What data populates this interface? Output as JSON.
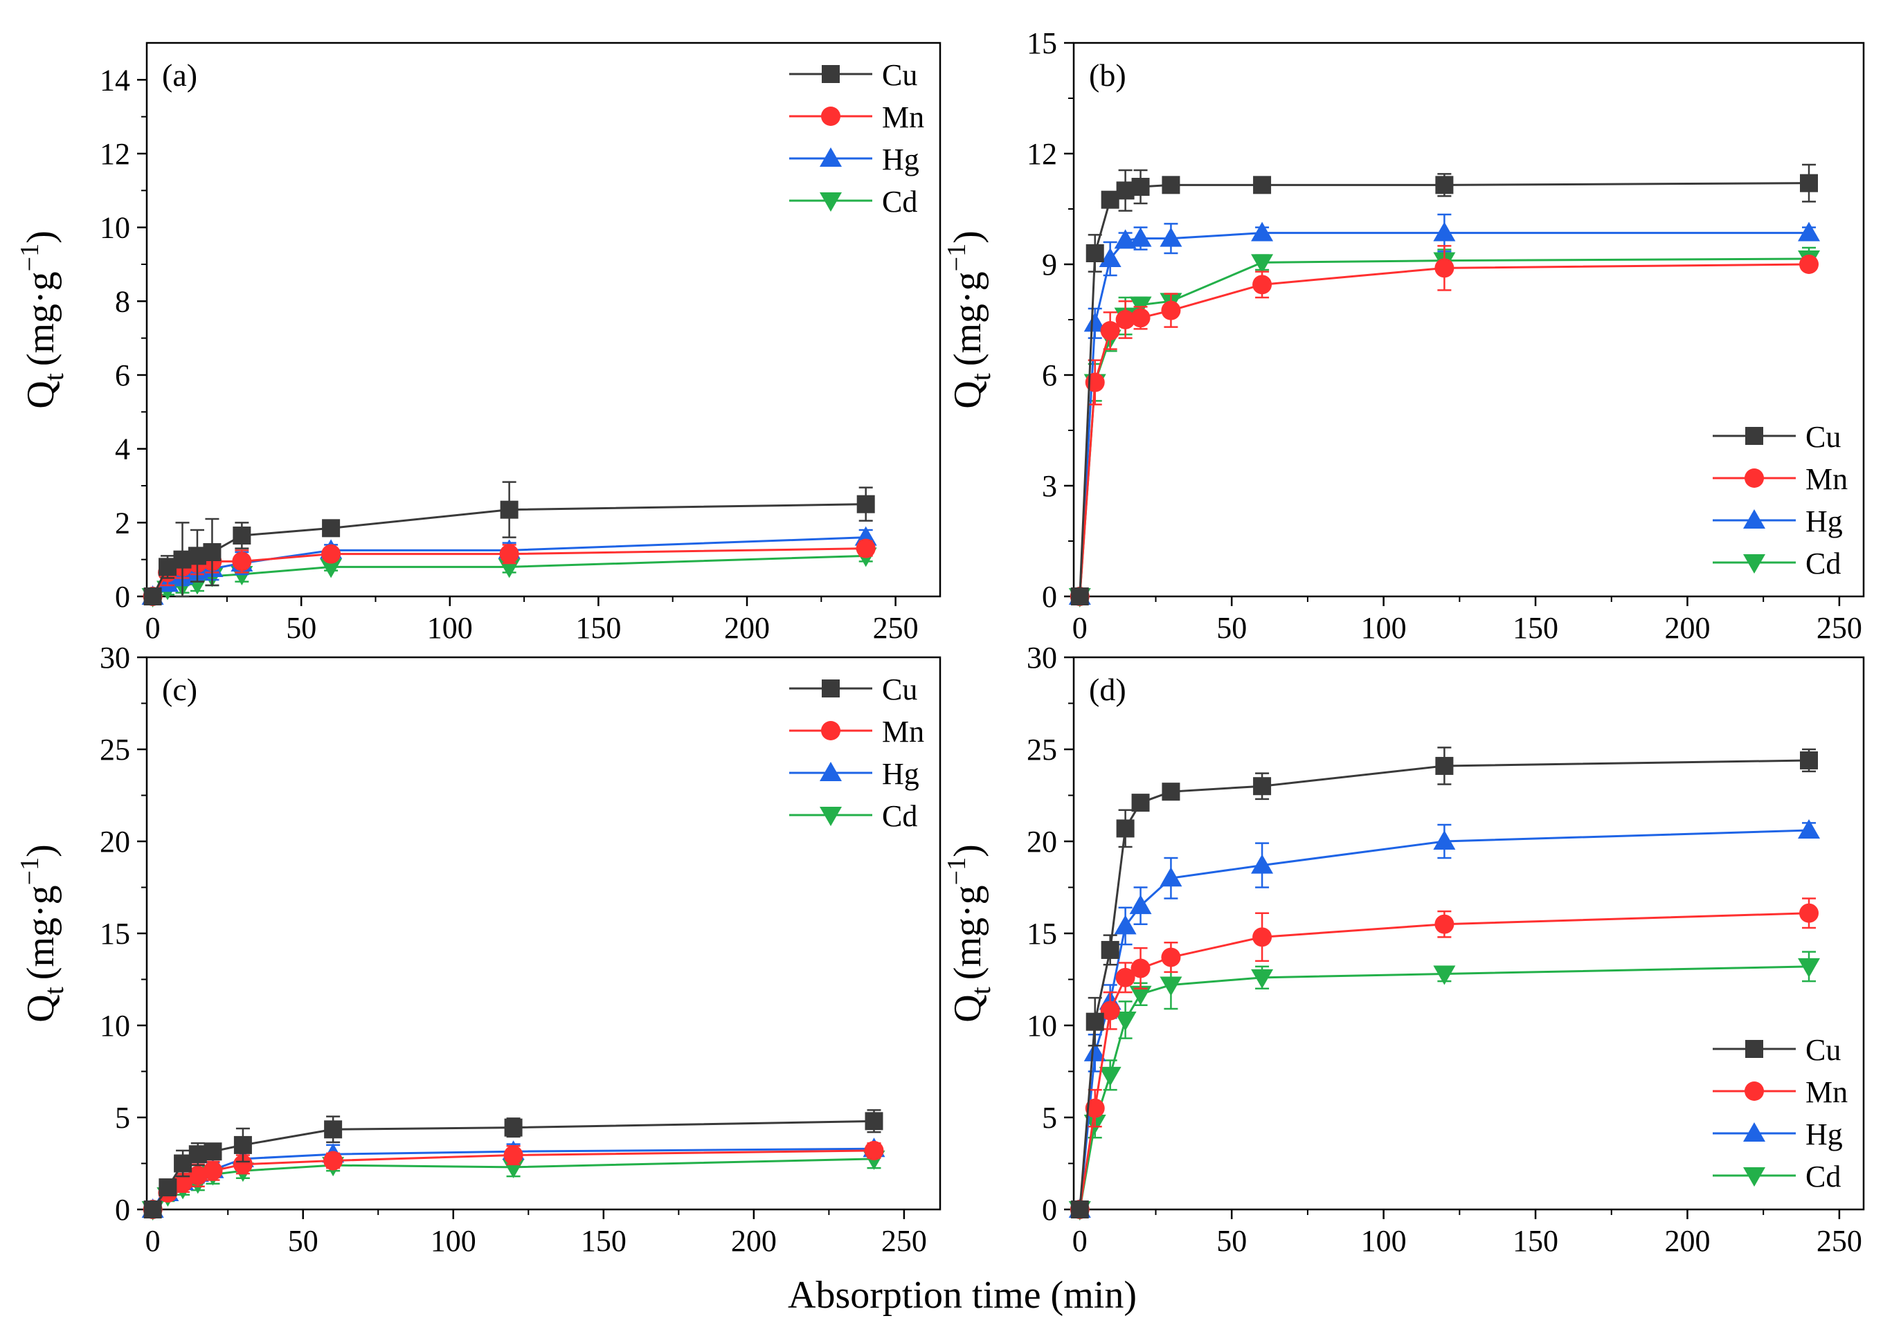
{
  "figure": {
    "xlabel": "Absorption time (min)",
    "colors": {
      "Cu": "#3a3a3a",
      "Mn": "#ff3030",
      "Hg": "#1e64e6",
      "Cd": "#23b04a"
    },
    "markers": {
      "Cu": "square",
      "Mn": "circle",
      "Hg": "triangle-up",
      "Cd": "triangle-down"
    }
  },
  "chart_data": [
    {
      "type": "line",
      "title": "(a)",
      "ylabel": "Q",
      "ylabel_sub": "t",
      "ylabel_unit": "(mg·g",
      "ylabel_sup": "−1",
      "ylabel_close": ")",
      "xlim": [
        -2,
        265
      ],
      "ylim": [
        0,
        15
      ],
      "xticks": [
        0,
        50,
        100,
        150,
        200,
        250
      ],
      "yticks": [
        0,
        2,
        4,
        6,
        8,
        10,
        12,
        14
      ],
      "x_tick_labels": [
        "0",
        "50",
        "100",
        "150",
        "200",
        "250"
      ],
      "y_tick_labels": [
        "0",
        "2",
        "4",
        "6",
        "8",
        "10",
        "12",
        "14"
      ],
      "legend_position": "top-right",
      "x": [
        0,
        5,
        10,
        15,
        20,
        30,
        60,
        120,
        240
      ],
      "series": [
        {
          "name": "Cu",
          "values": [
            0,
            0.8,
            1.0,
            1.1,
            1.2,
            1.65,
            1.85,
            2.35,
            2.5
          ],
          "errors": [
            0,
            0.3,
            1.0,
            0.7,
            0.9,
            0.35,
            0.15,
            0.75,
            0.45
          ]
        },
        {
          "name": "Mn",
          "values": [
            0,
            0.65,
            0.8,
            0.9,
            0.95,
            0.95,
            1.15,
            1.15,
            1.3
          ],
          "errors": [
            0,
            0.35,
            0.3,
            0.3,
            0.3,
            0.3,
            0.15,
            0.25,
            0.2
          ]
        },
        {
          "name": "Hg",
          "values": [
            0,
            0.35,
            0.55,
            0.7,
            0.75,
            0.9,
            1.25,
            1.25,
            1.6
          ],
          "errors": [
            0,
            0.2,
            0.25,
            0.25,
            0.3,
            0.3,
            0.15,
            0.2,
            0.2
          ]
        },
        {
          "name": "Cd",
          "values": [
            0,
            0.2,
            0.3,
            0.35,
            0.55,
            0.6,
            0.8,
            0.8,
            1.1
          ],
          "errors": [
            0,
            0.15,
            0.2,
            0.2,
            0.25,
            0.2,
            0.1,
            0.15,
            0.15
          ]
        }
      ]
    },
    {
      "type": "line",
      "title": "(b)",
      "ylabel": "Q",
      "ylabel_sub": "t",
      "ylabel_unit": "(mg·g",
      "ylabel_sup": "−1",
      "ylabel_close": ")",
      "xlim": [
        -2,
        258
      ],
      "ylim": [
        0,
        15
      ],
      "xticks": [
        0,
        50,
        100,
        150,
        200,
        250
      ],
      "yticks": [
        0,
        3,
        6,
        9,
        12,
        15
      ],
      "x_tick_labels": [
        "0",
        "50",
        "100",
        "150",
        "200",
        "250"
      ],
      "y_tick_labels": [
        "0",
        "3",
        "6",
        "9",
        "12",
        "15"
      ],
      "legend_position": "bottom-right",
      "x": [
        0,
        5,
        10,
        15,
        20,
        30,
        60,
        120,
        240
      ],
      "series": [
        {
          "name": "Cu",
          "values": [
            0,
            9.3,
            10.75,
            11.0,
            11.1,
            11.15,
            11.15,
            11.15,
            11.2
          ],
          "errors": [
            0,
            0.5,
            0.2,
            0.55,
            0.45,
            0.1,
            0.2,
            0.3,
            0.5
          ]
        },
        {
          "name": "Mn",
          "values": [
            0,
            5.8,
            7.2,
            7.5,
            7.55,
            7.75,
            8.45,
            8.9,
            9.0
          ],
          "errors": [
            0,
            0.6,
            0.5,
            0.5,
            0.3,
            0.45,
            0.35,
            0.6,
            0.1
          ]
        },
        {
          "name": "Hg",
          "values": [
            0,
            7.4,
            9.15,
            9.65,
            9.7,
            9.7,
            9.85,
            9.85,
            9.85
          ],
          "errors": [
            0,
            0.4,
            0.45,
            0.2,
            0.3,
            0.4,
            0.15,
            0.5,
            0.15
          ]
        },
        {
          "name": "Cd",
          "values": [
            0,
            5.8,
            7.0,
            7.6,
            7.9,
            8.0,
            9.05,
            9.1,
            9.15
          ],
          "errors": [
            0,
            0.5,
            0.35,
            0.5,
            0.2,
            0.2,
            0.2,
            0.3,
            0.3
          ]
        }
      ]
    },
    {
      "type": "line",
      "title": "(c)",
      "ylabel": "Q",
      "ylabel_sub": "t",
      "ylabel_unit": "(mg·g",
      "ylabel_sup": "−1",
      "ylabel_close": ")",
      "xlim": [
        -2,
        262
      ],
      "ylim": [
        0,
        30
      ],
      "xticks": [
        0,
        50,
        100,
        150,
        200,
        250
      ],
      "yticks": [
        0,
        5,
        10,
        15,
        20,
        25,
        30
      ],
      "x_tick_labels": [
        "0",
        "50",
        "100",
        "150",
        "200",
        "250"
      ],
      "y_tick_labels": [
        "0",
        "5",
        "10",
        "15",
        "20",
        "25",
        "30"
      ],
      "legend_position": "top-right",
      "x": [
        0,
        5,
        10,
        15,
        20,
        30,
        60,
        120,
        240
      ],
      "series": [
        {
          "name": "Cu",
          "values": [
            0,
            1.2,
            2.5,
            3.0,
            3.15,
            3.5,
            4.35,
            4.45,
            4.8
          ],
          "errors": [
            0,
            0.3,
            0.7,
            0.6,
            0.4,
            0.9,
            0.7,
            0.5,
            0.6
          ]
        },
        {
          "name": "Mn",
          "values": [
            0,
            0.9,
            1.45,
            1.85,
            2.1,
            2.45,
            2.65,
            2.95,
            3.2
          ],
          "errors": [
            0,
            0.3,
            0.5,
            0.6,
            0.5,
            0.5,
            0.4,
            0.5,
            0.4
          ]
        },
        {
          "name": "Hg",
          "values": [
            0,
            0.9,
            1.5,
            1.95,
            2.15,
            2.75,
            3.0,
            3.15,
            3.3
          ],
          "errors": [
            0,
            0.3,
            0.4,
            0.5,
            0.4,
            0.4,
            0.5,
            0.4,
            0.3
          ]
        },
        {
          "name": "Cd",
          "values": [
            0,
            0.75,
            1.15,
            1.45,
            1.9,
            2.1,
            2.4,
            2.3,
            2.75
          ],
          "errors": [
            0,
            0.3,
            0.35,
            0.4,
            0.5,
            0.4,
            0.3,
            0.5,
            0.5
          ]
        }
      ]
    },
    {
      "type": "line",
      "title": "(d)",
      "ylabel": "Q",
      "ylabel_sub": "t",
      "ylabel_unit": "(mg·g",
      "ylabel_sup": "−1",
      "ylabel_close": ")",
      "xlim": [
        -2,
        258
      ],
      "ylim": [
        0,
        30
      ],
      "xticks": [
        0,
        50,
        100,
        150,
        200,
        250
      ],
      "yticks": [
        0,
        5,
        10,
        15,
        20,
        25,
        30
      ],
      "x_tick_labels": [
        "0",
        "50",
        "100",
        "150",
        "200",
        "250"
      ],
      "y_tick_labels": [
        "0",
        "5",
        "10",
        "15",
        "20",
        "25",
        "30"
      ],
      "legend_position": "bottom-right",
      "x": [
        0,
        5,
        10,
        15,
        20,
        30,
        60,
        120,
        240
      ],
      "series": [
        {
          "name": "Cu",
          "values": [
            0,
            10.2,
            14.1,
            20.7,
            22.1,
            22.7,
            23.0,
            24.1,
            24.4
          ],
          "errors": [
            0,
            1.3,
            0.8,
            1.0,
            0.3,
            0.3,
            0.7,
            1.0,
            0.6
          ]
        },
        {
          "name": "Mn",
          "values": [
            0,
            5.5,
            10.8,
            12.6,
            13.1,
            13.7,
            14.8,
            15.5,
            16.1
          ],
          "errors": [
            0,
            1.0,
            1.0,
            0.8,
            1.1,
            0.8,
            1.3,
            0.7,
            0.8
          ]
        },
        {
          "name": "Hg",
          "values": [
            0,
            8.5,
            11.3,
            15.4,
            16.5,
            18.0,
            18.7,
            20.0,
            20.6
          ],
          "errors": [
            0,
            1.0,
            0.9,
            1.0,
            1.0,
            1.1,
            1.2,
            0.9,
            0.4
          ]
        },
        {
          "name": "Cd",
          "values": [
            0,
            4.7,
            7.3,
            10.3,
            11.7,
            12.2,
            12.6,
            12.8,
            13.2
          ],
          "errors": [
            0,
            0.8,
            0.8,
            1.0,
            0.6,
            1.3,
            0.6,
            0.4,
            0.8
          ]
        }
      ]
    }
  ]
}
